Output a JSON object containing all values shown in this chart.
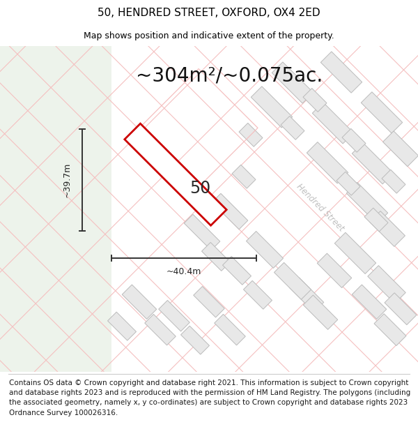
{
  "title": "50, HENDRED STREET, OXFORD, OX4 2ED",
  "subtitle": "Map shows position and indicative extent of the property.",
  "area_text": "~304m²/~0.075ac.",
  "width_label": "~40.4m",
  "height_label": "~39.7m",
  "street_label": "Hendred Street",
  "plot_number": "50",
  "footer_text": "Contains OS data © Crown copyright and database right 2021. This information is subject to Crown copyright and database rights 2023 and is reproduced with the permission of HM Land Registry. The polygons (including the associated geometry, namely x, y co-ordinates) are subject to Crown copyright and database rights 2023 Ordnance Survey 100026316.",
  "left_bg_color": "#eef3ec",
  "right_bg_color": "#ffffff",
  "plot_color": "#cc0000",
  "building_fill": "#e8e8e8",
  "building_edge": "#bbbbbb",
  "street_line_color": "#f5c0c0",
  "title_fontsize": 11,
  "subtitle_fontsize": 9,
  "area_fontsize": 20,
  "footer_fontsize": 7.5
}
